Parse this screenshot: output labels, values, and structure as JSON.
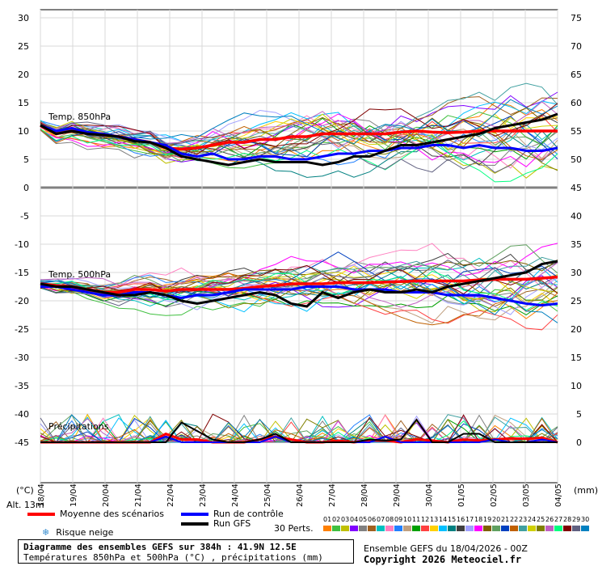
{
  "chart_data": {
    "type": "line",
    "axes": {
      "left_unit": "(°C)",
      "right_unit": "(mm)",
      "left_ticks": [
        30,
        25,
        20,
        15,
        10,
        5,
        0,
        -5,
        -10,
        -15,
        -20,
        -25,
        -30,
        -35,
        -40,
        -45
      ],
      "right_ticks": [
        75,
        70,
        65,
        60,
        55,
        50,
        45,
        40,
        35,
        30,
        25,
        20,
        15,
        10,
        5,
        0
      ],
      "ylim_left": [
        -50,
        30
      ],
      "x_dates": [
        "19/04",
        "20/04",
        "21/04",
        "22/04",
        "23/04",
        "24/04",
        "25/04",
        "26/04",
        "27/04",
        "28/04",
        "29/04",
        "30/04",
        "01/05",
        "02/05",
        "03/05",
        "04/05"
      ],
      "x_first_date": "18/04",
      "x_hours": [
        0,
        384
      ],
      "grid": true
    },
    "panels": {
      "t850_label": "Temp. 850hPa",
      "t500_label": "Temp. 500hPa",
      "precip_label": "Précipitations",
      "altitude_label": "Alt. 13m"
    },
    "series": [
      {
        "name": "Moyenne des scénarios",
        "color": "#ff0000",
        "t850": [
          11,
          9.5,
          10,
          9.6,
          9.4,
          9,
          8.5,
          8,
          7,
          6.8,
          7,
          7.5,
          8,
          8,
          8.5,
          8.5,
          9,
          9,
          9.5,
          9.5,
          9.5,
          9.5,
          9.5,
          9.8,
          10,
          9.8,
          9.7,
          9.8,
          10,
          10,
          10,
          10,
          10,
          10
        ],
        "t500": [
          -17,
          -17.3,
          -17.5,
          -18,
          -18.5,
          -18.5,
          -18,
          -18,
          -18.3,
          -18,
          -18,
          -18,
          -18,
          -17.8,
          -17.5,
          -17.3,
          -17,
          -17,
          -17,
          -16.8,
          -16.8,
          -16.8,
          -16.7,
          -16.6,
          -16.5,
          -16.5,
          -16.5,
          -16.5,
          -16.3,
          -16.2,
          -16.2,
          -16.2,
          -16,
          -15.8
        ],
        "precip": [
          0,
          0,
          0,
          0,
          0,
          0,
          0,
          0,
          1.5,
          0.5,
          0.5,
          0,
          0,
          0,
          0.5,
          1,
          0.5,
          0,
          0,
          0.3,
          0,
          0.3,
          0.3,
          0,
          0.5,
          0.3,
          0,
          0.5,
          0.3,
          0.5,
          0.7,
          0.6,
          0.8,
          0
        ]
      },
      {
        "name": "Run de contrôle",
        "color": "#0000ff",
        "t850": [
          11,
          10,
          10.5,
          9.8,
          9.5,
          9,
          8.5,
          8,
          7.5,
          6,
          5.5,
          6,
          5,
          5,
          5.5,
          5.5,
          5,
          5,
          5.5,
          6,
          6,
          6.5,
          6.5,
          7,
          7,
          7.5,
          7.5,
          7,
          7.5,
          7,
          7,
          6.5,
          6.5,
          7
        ],
        "t500": [
          -17.5,
          -17.5,
          -18,
          -18.5,
          -19,
          -19,
          -18.5,
          -18.5,
          -19,
          -19.5,
          -19,
          -19,
          -18.5,
          -18,
          -18,
          -18,
          -18,
          -17.5,
          -17.5,
          -17.5,
          -18,
          -18,
          -18,
          -18.5,
          -18.5,
          -18.5,
          -19,
          -19,
          -19,
          -19.5,
          -20,
          -20.5,
          -20.8,
          -20.5
        ],
        "precip": [
          0,
          0,
          0,
          0,
          0,
          0,
          0,
          0,
          1,
          0,
          0,
          0,
          0,
          0,
          0,
          1,
          0,
          0,
          0,
          0,
          0,
          0,
          1,
          0,
          0,
          0,
          0,
          0,
          0,
          0.5,
          0,
          0,
          0.5,
          0
        ]
      },
      {
        "name": "Run GFS",
        "color": "#000000",
        "t850": [
          11,
          9.5,
          10,
          9.5,
          9.3,
          9,
          8.2,
          8,
          7,
          5.5,
          5,
          4.5,
          4,
          4.5,
          5,
          4.5,
          4.5,
          4.5,
          4,
          4.5,
          5.5,
          5.5,
          6.5,
          7.5,
          7.5,
          8,
          8.5,
          9,
          9.5,
          10.5,
          11,
          11.5,
          12,
          13
        ],
        "t500": [
          -17,
          -17.5,
          -17.5,
          -18,
          -18.5,
          -19,
          -19,
          -18.5,
          -19,
          -20,
          -20.5,
          -20,
          -19.5,
          -19,
          -18.5,
          -19,
          -20.5,
          -21,
          -18.5,
          -19.5,
          -18.5,
          -18,
          -18.5,
          -18.5,
          -18,
          -18.5,
          -17.5,
          -17,
          -16.5,
          -16,
          -15.5,
          -15,
          -13.5,
          -13
        ],
        "precip": [
          0,
          0,
          0,
          0,
          0,
          0,
          0,
          0,
          0,
          3.5,
          2,
          0.5,
          0,
          0,
          0.5,
          1.5,
          0,
          0,
          0,
          0,
          0,
          0.5,
          0.3,
          0.5,
          4,
          0,
          0,
          1.5,
          1.5,
          0,
          0,
          0,
          0,
          0
        ]
      }
    ],
    "perturbation_count": 30,
    "perturbation_palette": [
      "#ff8000",
      "#40c040",
      "#c0c000",
      "#8000ff",
      "#808080",
      "#a06020",
      "#00c0c0",
      "#ff80c0",
      "#2080ff",
      "#c0a080",
      "#00a000",
      "#ff4040",
      "#ffd000",
      "#00c0ff",
      "#008080",
      "#404040",
      "#a0a0ff",
      "#ff00ff",
      "#806000",
      "#60a060",
      "#0040c0",
      "#c06000",
      "#40a0a0",
      "#d0d000",
      "#808000",
      "#c060c0",
      "#00ff80",
      "#800000",
      "#606080",
      "#0080c0"
    ]
  },
  "legend": {
    "mean_label": "Moyenne des scénarios",
    "control_label": "Run de contrôle",
    "gfs_label": "Run GFS",
    "snow_label": "Risque neige",
    "perts_label": "30 Perts.",
    "pert_numbers": [
      "01",
      "02",
      "03",
      "04",
      "05",
      "06",
      "07",
      "08",
      "09",
      "10",
      "11",
      "12",
      "13",
      "14",
      "15",
      "16",
      "17",
      "18",
      "19",
      "20",
      "21",
      "22",
      "23",
      "24",
      "25",
      "26",
      "27",
      "28",
      "29",
      "30"
    ]
  },
  "footer": {
    "title": "Diagramme des ensembles GEFS sur 384h : 41.9N 12.5E",
    "subtitle": "Températures 850hPa et 500hPa (°C) , précipitations (mm)",
    "run_info": "Ensemble GEFS du 18/04/2026 - 00Z",
    "copyright": "Copyright 2026 Meteociel.fr"
  },
  "colors": {
    "mean": "#ff0000",
    "control": "#0000ff",
    "gfs": "#000000",
    "grid": "#d0d0d0",
    "zero_line": "#808080"
  }
}
